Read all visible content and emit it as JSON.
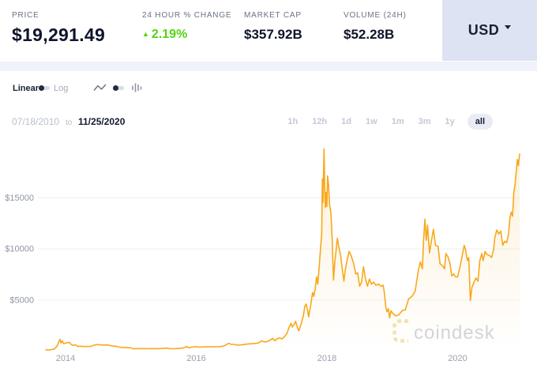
{
  "header": {
    "stats": [
      {
        "label": "PRICE",
        "value": "$19,291.49"
      },
      {
        "label": "24 HOUR % CHANGE",
        "value": "2.19%",
        "direction": "up",
        "up_symbol": "▲"
      },
      {
        "label": "MARKET CAP",
        "value": "$357.92B"
      },
      {
        "label": "VOLUME (24H)",
        "value": "$52.28B"
      }
    ],
    "currency_selector": {
      "label": "USD"
    }
  },
  "controls": {
    "scale_toggle": {
      "left_label": "Linear",
      "right_label": "Log",
      "selected": "Linear"
    },
    "chart_type_toggle": {
      "left_icon": "line-chart-icon",
      "right_icon": "bar-chart-icon",
      "selected": "line"
    }
  },
  "range": {
    "start_date": "07/18/2010",
    "separator": "to",
    "end_date": "11/25/2020",
    "presets": [
      "1h",
      "12h",
      "1d",
      "1w",
      "1m",
      "3m",
      "1y",
      "all"
    ],
    "active_preset": "all"
  },
  "watermark": {
    "text": "coindesk",
    "icon": "coindesk-dashed-c-icon"
  },
  "colors": {
    "line_gold": "#f8a81b",
    "area_gold": "rgba(248,168,27,0.12)",
    "change_green": "#55d313",
    "text_dark": "#0f142a",
    "label_gray": "#6a7183",
    "muted_gray": "#b9bfcc",
    "grid_gray": "#edeff4",
    "axis_text": "#9aa0ae",
    "usd_bg": "#dde3f2",
    "strip_bg": "#eff2f8",
    "pill_bg": "#e9ecf4",
    "watermark_text": "#d2d5dc",
    "watermark_icon": "#f3e2b4"
  },
  "chart_data": {
    "type": "line",
    "title": "",
    "xlabel": "",
    "ylabel": "",
    "grid": "horizontal",
    "legend": "none",
    "ylim": [
      0,
      20000
    ],
    "x_visible_range_decimal_years": [
      2013.7,
      2020.95
    ],
    "y_ticks": [
      {
        "label": "$5000",
        "value": 5000
      },
      {
        "label": "$10000",
        "value": 10000
      },
      {
        "label": "$15000",
        "value": 15000
      }
    ],
    "x_ticks": [
      {
        "label": "2014",
        "year": 2014
      },
      {
        "label": "2016",
        "year": 2016
      },
      {
        "label": "2018",
        "year": 2018
      },
      {
        "label": "2020",
        "year": 2020
      }
    ],
    "points_format": [
      "decimal_year",
      "price_usd"
    ],
    "points": [
      [
        2013.7,
        120
      ],
      [
        2013.75,
        125
      ],
      [
        2013.79,
        150
      ],
      [
        2013.83,
        210
      ],
      [
        2013.87,
        480
      ],
      [
        2013.9,
        950
      ],
      [
        2013.915,
        1150
      ],
      [
        2013.93,
        790
      ],
      [
        2013.95,
        1000
      ],
      [
        2013.97,
        730
      ],
      [
        2014.0,
        770
      ],
      [
        2014.03,
        830
      ],
      [
        2014.06,
        850
      ],
      [
        2014.09,
        630
      ],
      [
        2014.12,
        550
      ],
      [
        2014.15,
        620
      ],
      [
        2014.19,
        450
      ],
      [
        2014.23,
        480
      ],
      [
        2014.27,
        450
      ],
      [
        2014.32,
        445
      ],
      [
        2014.38,
        450
      ],
      [
        2014.44,
        590
      ],
      [
        2014.49,
        640
      ],
      [
        2014.54,
        600
      ],
      [
        2014.59,
        585
      ],
      [
        2014.64,
        600
      ],
      [
        2014.7,
        510
      ],
      [
        2014.76,
        480
      ],
      [
        2014.82,
        390
      ],
      [
        2014.88,
        355
      ],
      [
        2014.94,
        330
      ],
      [
        2015.0,
        315
      ],
      [
        2015.04,
        215
      ],
      [
        2015.08,
        245
      ],
      [
        2015.12,
        225
      ],
      [
        2015.17,
        250
      ],
      [
        2015.25,
        235
      ],
      [
        2015.33,
        240
      ],
      [
        2015.42,
        238
      ],
      [
        2015.5,
        262
      ],
      [
        2015.55,
        285
      ],
      [
        2015.6,
        235
      ],
      [
        2015.68,
        240
      ],
      [
        2015.76,
        265
      ],
      [
        2015.82,
        335
      ],
      [
        2015.85,
        455
      ],
      [
        2015.88,
        330
      ],
      [
        2015.92,
        365
      ],
      [
        2015.96,
        425
      ],
      [
        2016.0,
        432
      ],
      [
        2016.05,
        385
      ],
      [
        2016.12,
        415
      ],
      [
        2016.22,
        418
      ],
      [
        2016.32,
        422
      ],
      [
        2016.4,
        455
      ],
      [
        2016.45,
        585
      ],
      [
        2016.48,
        700
      ],
      [
        2016.5,
        765
      ],
      [
        2016.53,
        665
      ],
      [
        2016.58,
        655
      ],
      [
        2016.62,
        580
      ],
      [
        2016.68,
        605
      ],
      [
        2016.74,
        650
      ],
      [
        2016.8,
        700
      ],
      [
        2016.88,
        730
      ],
      [
        2016.95,
        790
      ],
      [
        2017.0,
        1000
      ],
      [
        2017.04,
        895
      ],
      [
        2017.08,
        920
      ],
      [
        2017.13,
        1060
      ],
      [
        2017.17,
        1250
      ],
      [
        2017.2,
        1010
      ],
      [
        2017.24,
        1210
      ],
      [
        2017.28,
        1280
      ],
      [
        2017.31,
        1190
      ],
      [
        2017.35,
        1400
      ],
      [
        2017.39,
        1750
      ],
      [
        2017.42,
        2320
      ],
      [
        2017.45,
        2720
      ],
      [
        2017.47,
        2350
      ],
      [
        2017.5,
        2620
      ],
      [
        2017.52,
        2920
      ],
      [
        2017.55,
        2250
      ],
      [
        2017.57,
        1980
      ],
      [
        2017.61,
        2750
      ],
      [
        2017.64,
        3480
      ],
      [
        2017.66,
        4350
      ],
      [
        2017.68,
        4620
      ],
      [
        2017.7,
        4120
      ],
      [
        2017.72,
        3350
      ],
      [
        2017.75,
        4420
      ],
      [
        2017.78,
        5730
      ],
      [
        2017.8,
        5350
      ],
      [
        2017.82,
        6130
      ],
      [
        2017.84,
        7250
      ],
      [
        2017.86,
        6550
      ],
      [
        2017.88,
        8150
      ],
      [
        2017.9,
        9850
      ],
      [
        2017.92,
        11500
      ],
      [
        2017.93,
        16850
      ],
      [
        2017.94,
        14550
      ],
      [
        2017.955,
        19780
      ],
      [
        2017.965,
        16550
      ],
      [
        2017.975,
        14050
      ],
      [
        2017.985,
        15550
      ],
      [
        2018.0,
        14150
      ],
      [
        2018.01,
        17150
      ],
      [
        2018.025,
        16250
      ],
      [
        2018.04,
        14350
      ],
      [
        2018.06,
        13550
      ],
      [
        2018.08,
        11050
      ],
      [
        2018.1,
        6950
      ],
      [
        2018.12,
        8650
      ],
      [
        2018.14,
        9850
      ],
      [
        2018.16,
        11050
      ],
      [
        2018.18,
        10250
      ],
      [
        2018.21,
        9350
      ],
      [
        2018.23,
        8250
      ],
      [
        2018.26,
        6850
      ],
      [
        2018.28,
        7950
      ],
      [
        2018.31,
        8950
      ],
      [
        2018.34,
        9750
      ],
      [
        2018.37,
        9350
      ],
      [
        2018.41,
        8550
      ],
      [
        2018.44,
        7550
      ],
      [
        2018.47,
        7650
      ],
      [
        2018.5,
        6350
      ],
      [
        2018.53,
        6750
      ],
      [
        2018.56,
        8250
      ],
      [
        2018.59,
        7050
      ],
      [
        2018.62,
        6350
      ],
      [
        2018.65,
        7050
      ],
      [
        2018.68,
        6550
      ],
      [
        2018.71,
        6750
      ],
      [
        2018.75,
        6450
      ],
      [
        2018.79,
        6550
      ],
      [
        2018.83,
        6350
      ],
      [
        2018.86,
        6450
      ],
      [
        2018.88,
        5650
      ],
      [
        2018.9,
        4350
      ],
      [
        2018.92,
        3850
      ],
      [
        2018.94,
        4150
      ],
      [
        2018.96,
        3250
      ],
      [
        2018.98,
        3950
      ],
      [
        2019.0,
        3750
      ],
      [
        2019.05,
        3450
      ],
      [
        2019.1,
        3550
      ],
      [
        2019.15,
        3950
      ],
      [
        2019.2,
        4050
      ],
      [
        2019.25,
        5100
      ],
      [
        2019.3,
        5350
      ],
      [
        2019.35,
        5850
      ],
      [
        2019.4,
        7980
      ],
      [
        2019.43,
        8720
      ],
      [
        2019.46,
        8050
      ],
      [
        2019.48,
        11020
      ],
      [
        2019.5,
        12900
      ],
      [
        2019.52,
        10850
      ],
      [
        2019.54,
        12320
      ],
      [
        2019.57,
        9620
      ],
      [
        2019.6,
        10850
      ],
      [
        2019.63,
        11920
      ],
      [
        2019.66,
        10350
      ],
      [
        2019.7,
        10250
      ],
      [
        2019.73,
        8550
      ],
      [
        2019.77,
        8350
      ],
      [
        2019.8,
        8050
      ],
      [
        2019.82,
        9550
      ],
      [
        2019.85,
        9250
      ],
      [
        2019.88,
        8650
      ],
      [
        2019.91,
        7350
      ],
      [
        2019.94,
        7550
      ],
      [
        2019.97,
        7250
      ],
      [
        2020.0,
        7250
      ],
      [
        2020.04,
        8350
      ],
      [
        2020.07,
        9350
      ],
      [
        2020.1,
        10350
      ],
      [
        2020.12,
        9950
      ],
      [
        2020.15,
        8850
      ],
      [
        2020.17,
        9150
      ],
      [
        2020.195,
        4950
      ],
      [
        2020.22,
        6250
      ],
      [
        2020.25,
        6750
      ],
      [
        2020.28,
        7150
      ],
      [
        2020.31,
        6850
      ],
      [
        2020.34,
        8850
      ],
      [
        2020.37,
        9550
      ],
      [
        2020.39,
        8850
      ],
      [
        2020.42,
        9750
      ],
      [
        2020.45,
        9450
      ],
      [
        2020.49,
        9350
      ],
      [
        2020.52,
        9150
      ],
      [
        2020.55,
        9950
      ],
      [
        2020.57,
        11150
      ],
      [
        2020.6,
        11850
      ],
      [
        2020.63,
        11450
      ],
      [
        2020.66,
        11750
      ],
      [
        2020.69,
        10350
      ],
      [
        2020.72,
        10750
      ],
      [
        2020.75,
        10600
      ],
      [
        2020.78,
        11450
      ],
      [
        2020.8,
        13050
      ],
      [
        2020.82,
        13600
      ],
      [
        2020.84,
        13200
      ],
      [
        2020.86,
        15550
      ],
      [
        2020.88,
        16350
      ],
      [
        2020.9,
        17800
      ],
      [
        2020.915,
        18750
      ],
      [
        2020.93,
        18150
      ],
      [
        2020.94,
        18850
      ],
      [
        2020.95,
        19291
      ]
    ]
  }
}
